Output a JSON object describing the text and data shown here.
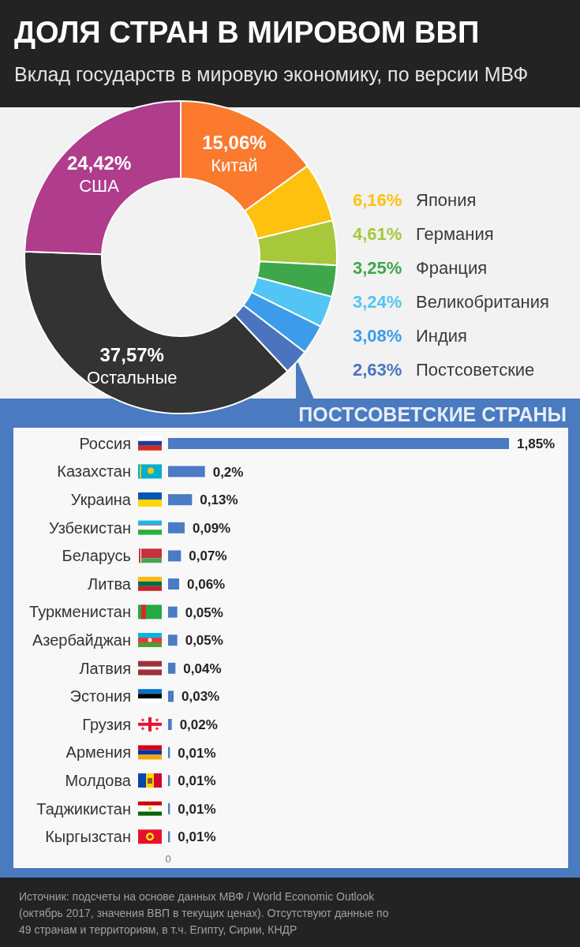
{
  "chart_data": [
    {
      "type": "donut",
      "title": "ДОЛЯ СТРАН В МИРОВОМ ВВП",
      "subtitle": "Вклад государств в мировую экономику, по версии МВФ",
      "categories": [
        "Китай",
        "Япония",
        "Германия",
        "Франция",
        "Великобритания",
        "Индия",
        "Постсоветские",
        "Остальные",
        "США"
      ],
      "values": [
        15.06,
        6.16,
        4.61,
        3.25,
        3.24,
        3.08,
        2.63,
        37.57,
        24.42
      ],
      "value_labels": [
        "15,06%",
        "6,16%",
        "4,61%",
        "3,25%",
        "3,24%",
        "3,08%",
        "2,63%",
        "37,57%",
        "24,42%"
      ],
      "colors": [
        "#fc7a2e",
        "#fec20e",
        "#a6c83a",
        "#3ea74b",
        "#52c5f5",
        "#3c9cea",
        "#4a74bd",
        "#333333",
        "#b03c8c"
      ]
    },
    {
      "type": "bar",
      "orientation": "horizontal",
      "title": "ПОСТСОВЕТСКИЕ СТРАНЫ",
      "categories": [
        "Россия",
        "Казахстан",
        "Украина",
        "Узбекистан",
        "Беларусь",
        "Литва",
        "Туркменистан",
        "Азербайджан",
        "Латвия",
        "Эстония",
        "Грузия",
        "Армения",
        "Молдова",
        "Таджикистан",
        "Кыргызстан"
      ],
      "values": [
        1.85,
        0.2,
        0.13,
        0.09,
        0.07,
        0.06,
        0.05,
        0.05,
        0.04,
        0.03,
        0.02,
        0.01,
        0.01,
        0.01,
        0.01
      ],
      "value_labels": [
        "1,85%",
        "0,2%",
        "0,13%",
        "0,09%",
        "0,07%",
        "0,06%",
        "0,05%",
        "0,05%",
        "0,04%",
        "0,03%",
        "0,02%",
        "0,01%",
        "0,01%",
        "0,01%",
        "0,01%"
      ],
      "color": "#4a7bc4",
      "annotations": [
        "0",
        "Источник: подсчеты на основе данных МВФ / World Economic Outlook (октябрь 2017, значения ВВП в текущих ценах). Отсутствуют данные по 49 странам и территориям, в т.ч. Египту, Сирии, КНДР"
      ]
    }
  ]
}
